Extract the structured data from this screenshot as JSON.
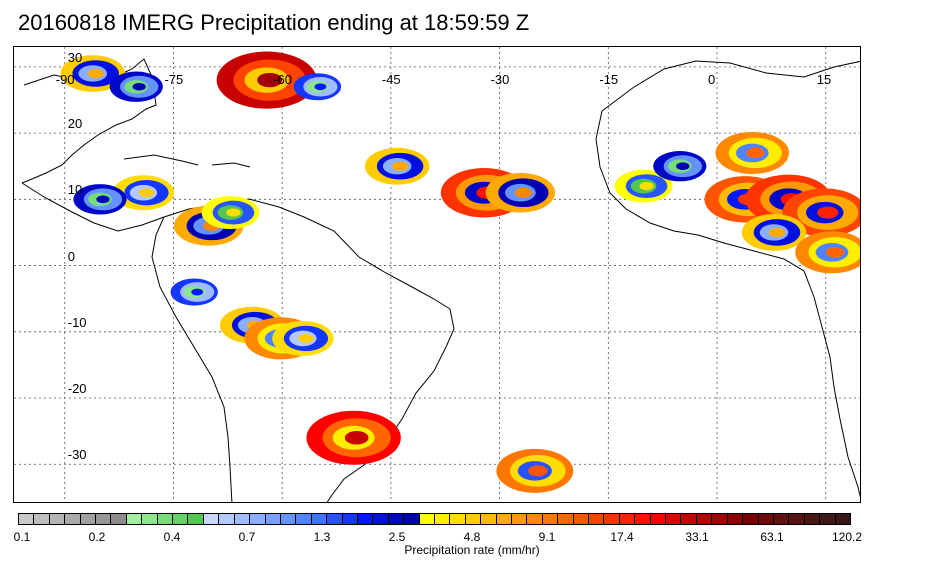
{
  "title": "20160818 IMERG Precipitation ending at 18:59:59 Z",
  "map": {
    "lon_labels": [
      "-90",
      "-75",
      "-60",
      "-45",
      "-30",
      "-15",
      "0",
      "15"
    ],
    "lat_labels": [
      "30",
      "20",
      "10",
      "0",
      "-10",
      "-20",
      "-30"
    ],
    "lon_range": [
      -97,
      20
    ],
    "lat_range": [
      -36,
      33
    ],
    "lon_grid": [
      -90,
      -75,
      -60,
      -45,
      -30,
      -15,
      0,
      15
    ],
    "lat_grid": [
      30,
      20,
      10,
      0,
      -10,
      -20,
      -30
    ],
    "gridlines": "dotted",
    "coastline_color": "#000000"
  },
  "colorbar": {
    "label": "Precipitation rate (mm/hr)",
    "tick_labels": [
      "0.1",
      "0.2",
      "0.4",
      "0.7",
      "1.3",
      "2.5",
      "4.8",
      "9.1",
      "17.4",
      "33.1",
      "63.1",
      "120.2"
    ],
    "colors": [
      "#c8c8c8",
      "#bebebe",
      "#b4b4b4",
      "#aaaaaa",
      "#a0a0a0",
      "#969696",
      "#8c8c8c",
      "#a0f0a0",
      "#8ce68c",
      "#78dc78",
      "#64d264",
      "#50c850",
      "#c8d8ff",
      "#b4caff",
      "#a0bcff",
      "#8caeff",
      "#78a0ff",
      "#6492ff",
      "#5084ff",
      "#3c76ff",
      "#2854ff",
      "#1436ff",
      "#0018ff",
      "#0010e0",
      "#0008c8",
      "#0000b4",
      "#ffff00",
      "#ffee00",
      "#ffdd00",
      "#ffcc00",
      "#ffbb00",
      "#ffaa00",
      "#ff9900",
      "#ff8800",
      "#ff7700",
      "#ff6600",
      "#ff5500",
      "#ff4400",
      "#ff3300",
      "#ff2200",
      "#ff1100",
      "#ff0000",
      "#e00000",
      "#c80000",
      "#b40000",
      "#a00000",
      "#8c0000",
      "#7a0000",
      "#6e0a0a",
      "#621010",
      "#561414",
      "#4a1616",
      "#401818",
      "#361818"
    ]
  },
  "precip_cells": [
    {
      "lon": -62,
      "lat": 28,
      "rate": 40
    },
    {
      "lon": -86,
      "lat": 29,
      "rate": 6
    },
    {
      "lon": -80,
      "lat": 27,
      "rate": 3
    },
    {
      "lon": -79,
      "lat": 11,
      "rate": 5
    },
    {
      "lon": -85,
      "lat": 10,
      "rate": 3
    },
    {
      "lon": -70,
      "lat": 6,
      "rate": 8
    },
    {
      "lon": -67,
      "lat": 8,
      "rate": 4
    },
    {
      "lon": -64,
      "lat": -9,
      "rate": 6
    },
    {
      "lon": -60,
      "lat": -11,
      "rate": 10
    },
    {
      "lon": -57,
      "lat": -11,
      "rate": 5
    },
    {
      "lon": -72,
      "lat": -4,
      "rate": 2
    },
    {
      "lon": -50,
      "lat": -26,
      "rate": 30
    },
    {
      "lon": -44,
      "lat": 15,
      "rate": 6
    },
    {
      "lon": -32,
      "lat": 11,
      "rate": 20
    },
    {
      "lon": -27,
      "lat": 11,
      "rate": 8
    },
    {
      "lon": -25,
      "lat": -31,
      "rate": 12
    },
    {
      "lon": 5,
      "lat": 17,
      "rate": 10
    },
    {
      "lon": 4,
      "lat": 10,
      "rate": 15
    },
    {
      "lon": 10,
      "lat": 10,
      "rate": 20
    },
    {
      "lon": 15,
      "lat": 8,
      "rate": 18
    },
    {
      "lon": 8,
      "lat": 5,
      "rate": 6
    },
    {
      "lon": 16,
      "lat": 2,
      "rate": 10
    },
    {
      "lon": -10,
      "lat": 12,
      "rate": 4
    },
    {
      "lon": -5,
      "lat": 15,
      "rate": 3
    },
    {
      "lon": -55,
      "lat": 27,
      "rate": 2
    }
  ]
}
